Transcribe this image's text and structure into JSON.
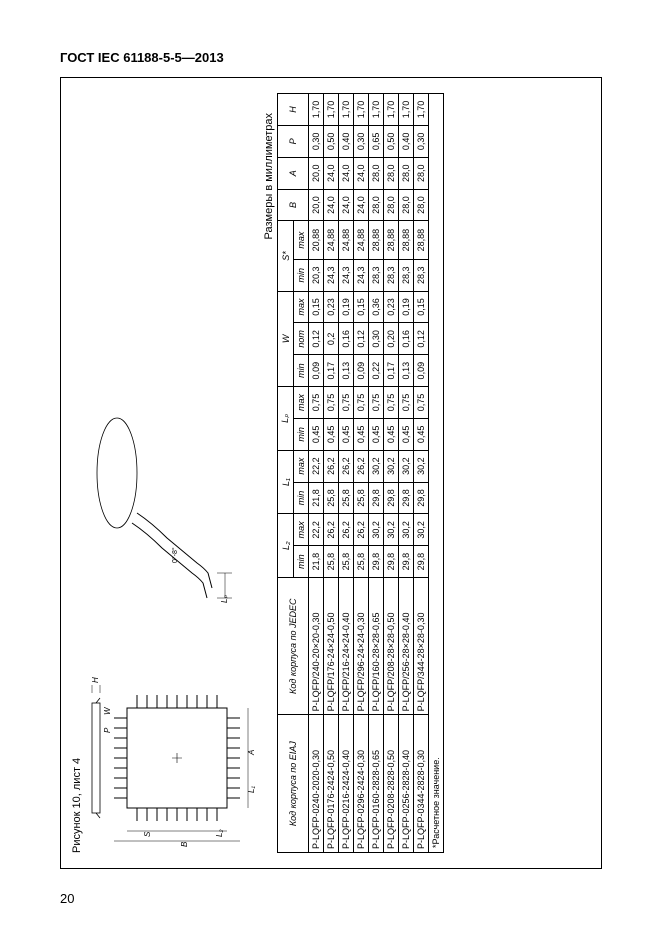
{
  "doc_header": "ГОСТ IEC 61188-5-5—2013",
  "page_number": "20",
  "figure_title": "Рисунок 10, лист 4",
  "units_label": "Размеры в миллиметрах",
  "footnote": "*Расчетное значение.",
  "diagram_labels": {
    "H": "H",
    "S": "S",
    "B": "B",
    "L1": "L₁",
    "L2": "L₂",
    "Lp": "Lₚ",
    "A": "A",
    "P": "P",
    "W": "W"
  },
  "table": {
    "headers": {
      "eiaj": "Код корпуса по EIAJ",
      "jedec": "Код корпуса по JEDEC",
      "L2": "L₂",
      "L1": "L₁",
      "Lp": "Lₚ",
      "W": "W",
      "S": "S*",
      "B": "B",
      "A": "A",
      "P": "P",
      "H": "H",
      "min": "min",
      "max": "max",
      "nom": "nom"
    },
    "rows": [
      {
        "eiaj": "P-LQFP-0240-2020-0,30",
        "jedec": "P-LQFP/240-20×20-0,30",
        "L2": [
          "21,8",
          "22,2"
        ],
        "L1": [
          "21,8",
          "22,2"
        ],
        "Lp": [
          "0,45",
          "0,75"
        ],
        "W": [
          "0,09",
          "0,12",
          "0,15"
        ],
        "S": [
          "20,3",
          "20,88"
        ],
        "B": "20,0",
        "A": "20,0",
        "P": "0,30",
        "H": "1,70"
      },
      {
        "eiaj": "P-LQFP-0176-2424-0,50",
        "jedec": "P-LQFP/176-24×24-0,50",
        "L2": [
          "25,8",
          "26,2"
        ],
        "L1": [
          "25,8",
          "26,2"
        ],
        "Lp": [
          "0,45",
          "0,75"
        ],
        "W": [
          "0,17",
          "0,2",
          "0,23"
        ],
        "S": [
          "24,3",
          "24,88"
        ],
        "B": "24,0",
        "A": "24,0",
        "P": "0,50",
        "H": "1,70"
      },
      {
        "eiaj": "P-LQFP-0216-2424-0,40",
        "jedec": "P-LQFP/216-24×24-0,40",
        "L2": [
          "25,8",
          "26,2"
        ],
        "L1": [
          "25,8",
          "26,2"
        ],
        "Lp": [
          "0,45",
          "0,75"
        ],
        "W": [
          "0,13",
          "0,16",
          "0,19"
        ],
        "S": [
          "24,3",
          "24,88"
        ],
        "B": "24,0",
        "A": "24,0",
        "P": "0,40",
        "H": "1,70"
      },
      {
        "eiaj": "P-LQFP-0296-2424-0,30",
        "jedec": "P-LQFP/296-24×24-0,30",
        "L2": [
          "25,8",
          "26,2"
        ],
        "L1": [
          "25,8",
          "26,2"
        ],
        "Lp": [
          "0,45",
          "0,75"
        ],
        "W": [
          "0,09",
          "0,12",
          "0,15"
        ],
        "S": [
          "24,3",
          "24,88"
        ],
        "B": "24,0",
        "A": "24,0",
        "P": "0,30",
        "H": "1,70"
      },
      {
        "eiaj": "P-LQFP-0160-2828-0,65",
        "jedec": "P-LQFP/160-28×28-0,65",
        "L2": [
          "29,8",
          "30,2"
        ],
        "L1": [
          "29,8",
          "30,2"
        ],
        "Lp": [
          "0,45",
          "0,75"
        ],
        "W": [
          "0,22",
          "0,30",
          "0,36"
        ],
        "S": [
          "28,3",
          "28,88"
        ],
        "B": "28,0",
        "A": "28,0",
        "P": "0,65",
        "H": "1,70"
      },
      {
        "eiaj": "P-LQFP-0208-2828-0,50",
        "jedec": "P-LQFP/208-28×28-0,50",
        "L2": [
          "29,8",
          "30,2"
        ],
        "L1": [
          "29,8",
          "30,2"
        ],
        "Lp": [
          "0,45",
          "0,75"
        ],
        "W": [
          "0,17",
          "0,20",
          "0,23"
        ],
        "S": [
          "28,3",
          "28,88"
        ],
        "B": "28,0",
        "A": "28,0",
        "P": "0,50",
        "H": "1,70"
      },
      {
        "eiaj": "P-LQFP-0256-2828-0,40",
        "jedec": "P-LQFP/256-28×28-0,40",
        "L2": [
          "29,8",
          "30,2"
        ],
        "L1": [
          "29,8",
          "30,2"
        ],
        "Lp": [
          "0,45",
          "0,75"
        ],
        "W": [
          "0,13",
          "0,16",
          "0,19"
        ],
        "S": [
          "28,3",
          "28,88"
        ],
        "B": "28,0",
        "A": "28,0",
        "P": "0,40",
        "H": "1,70"
      },
      {
        "eiaj": "P-LQFP-0344-2828-0,30",
        "jedec": "P-LQFP/344-28×28-0,30",
        "L2": [
          "29,8",
          "30,2"
        ],
        "L1": [
          "29,8",
          "30,2"
        ],
        "Lp": [
          "0,45",
          "0,75"
        ],
        "W": [
          "0,09",
          "0,12",
          "0,15"
        ],
        "S": [
          "28,3",
          "28,88"
        ],
        "B": "28,0",
        "A": "28,0",
        "P": "0,30",
        "H": "1,70"
      }
    ]
  }
}
